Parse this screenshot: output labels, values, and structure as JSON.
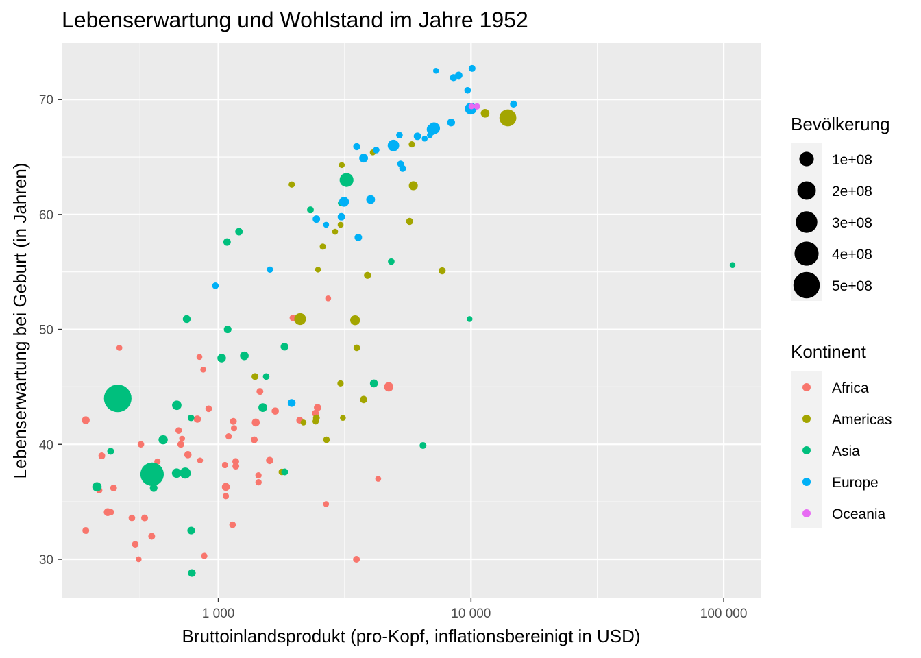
{
  "chart_data": {
    "type": "scatter",
    "title": "Lebenserwartung und Wohlstand im Jahre 1952",
    "xlabel": "Bruttoinlandsprodukt (pro-Kopf, inflationsbereinigt in USD)",
    "ylabel": "Lebenserwartung bei Geburt (in Jahren)",
    "x_scale": "log10",
    "x_ticks": [
      1000,
      10000,
      100000
    ],
    "x_tick_labels": [
      "1 000",
      "10 000",
      "100 000"
    ],
    "y_ticks": [
      30,
      40,
      50,
      60,
      70
    ],
    "y_tick_labels": [
      "30",
      "40",
      "50",
      "60",
      "70"
    ],
    "xlim": [
      240,
      140000
    ],
    "ylim": [
      26.6,
      74.9
    ],
    "panel_background": "#ebebeb",
    "grid": true,
    "size_legend": {
      "title": "Bevölkerung",
      "entries": [
        {
          "label": "1e+08",
          "value": 100000000
        },
        {
          "label": "2e+08",
          "value": 200000000
        },
        {
          "label": "3e+08",
          "value": 300000000
        },
        {
          "label": "4e+08",
          "value": 400000000
        },
        {
          "label": "5e+08",
          "value": 500000000
        }
      ]
    },
    "color_legend": {
      "title": "Kontinent",
      "entries": [
        {
          "label": "Africa",
          "color": "#F8766D"
        },
        {
          "label": "Americas",
          "color": "#A3A500"
        },
        {
          "label": "Asia",
          "color": "#00BF7D"
        },
        {
          "label": "Europe",
          "color": "#00B0F6"
        },
        {
          "label": "Oceania",
          "color": "#E76BF3"
        }
      ]
    },
    "series": [
      {
        "name": "Africa",
        "color": "#F8766D",
        "points": [
          [
            299,
            42.1,
            9
          ],
          [
            299,
            32.5,
            4
          ],
          [
            338,
            36.0,
            2
          ],
          [
            346,
            39.0,
            4
          ],
          [
            385,
            36.2,
            4
          ],
          [
            376,
            34.1,
            2
          ],
          [
            365,
            34.1,
            9
          ],
          [
            406,
            48.4,
            1
          ],
          [
            455,
            33.6,
            3
          ],
          [
            469,
            31.3,
            3
          ],
          [
            484,
            30.0,
            1
          ],
          [
            494,
            40.0,
            3
          ],
          [
            511,
            33.6,
            4
          ],
          [
            545,
            32.0,
            4
          ],
          [
            574,
            38.5,
            2
          ],
          [
            697,
            41.2,
            3
          ],
          [
            711,
            40.0,
            4
          ],
          [
            719,
            40.5,
            1
          ],
          [
            741,
            37.4,
            4
          ],
          [
            758,
            39.1,
            6
          ],
          [
            826,
            42.2,
            6
          ],
          [
            842,
            47.6,
            1
          ],
          [
            847,
            38.6,
            1
          ],
          [
            872,
            46.5,
            1
          ],
          [
            880,
            30.3,
            2
          ],
          [
            916,
            43.1,
            3
          ],
          [
            1063,
            38.2,
            2
          ],
          [
            1071,
            36.3,
            10
          ],
          [
            1071,
            35.5,
            2
          ],
          [
            1099,
            40.7,
            2
          ],
          [
            1139,
            33.0,
            3
          ],
          [
            1147,
            42.0,
            4
          ],
          [
            1154,
            41.4,
            2
          ],
          [
            1172,
            38.5,
            4
          ],
          [
            1173,
            38.1,
            4
          ],
          [
            1388,
            40.4,
            4
          ],
          [
            1407,
            41.9,
            10
          ],
          [
            1442,
            37.3,
            2
          ],
          [
            1443,
            36.7,
            2
          ],
          [
            1461,
            44.6,
            4
          ],
          [
            1597,
            38.6,
            6
          ],
          [
            1680,
            42.9,
            6
          ],
          [
            1970,
            51.0,
            2
          ],
          [
            2032,
            50.9,
            2
          ],
          [
            2100,
            42.1,
            4
          ],
          [
            2424,
            42.7,
            5
          ],
          [
            2470,
            43.2,
            6
          ],
          [
            2670,
            34.8,
            1
          ],
          [
            2721,
            52.7,
            1
          ],
          [
            3521,
            30.0,
            4
          ],
          [
            4293,
            37.0,
            1
          ],
          [
            4725,
            45.0,
            21
          ]
        ]
      },
      {
        "name": "Americas",
        "color": "#A3A500",
        "points": [
          [
            1397,
            45.9,
            4
          ],
          [
            1784,
            37.6,
            3
          ],
          [
            1953,
            62.6,
            2
          ],
          [
            2108,
            50.9,
            52
          ],
          [
            2144,
            50.8,
            4
          ],
          [
            2173,
            41.9,
            1
          ],
          [
            2428,
            42.0,
            2
          ],
          [
            2444,
            42.3,
            4
          ],
          [
            2480,
            55.2,
            1
          ],
          [
            2591,
            57.2,
            2
          ],
          [
            2680,
            40.4,
            3
          ],
          [
            2899,
            58.5,
            1
          ],
          [
            3048,
            59.1,
            1
          ],
          [
            3081,
            64.3,
            1
          ],
          [
            3112,
            42.3,
            1
          ],
          [
            3045,
            45.3,
            2
          ],
          [
            3478,
            50.8,
            26
          ],
          [
            3531,
            48.4,
            3
          ],
          [
            3759,
            43.9,
            6
          ],
          [
            3895,
            54.7,
            5
          ],
          [
            4086,
            65.4,
            1
          ],
          [
            5716,
            59.4,
            5
          ],
          [
            5912,
            62.5,
            18
          ],
          [
            5833,
            66.1,
            2
          ],
          [
            7690,
            55.1,
            5
          ],
          [
            11367,
            68.8,
            15
          ],
          [
            13990,
            68.4,
            157
          ]
        ]
      },
      {
        "name": "Asia",
        "color": "#00BF7D",
        "points": [
          [
            331,
            36.3,
            21
          ],
          [
            331,
            36.3,
            10
          ],
          [
            375,
            39.4,
            4
          ],
          [
            400,
            44.0,
            556
          ],
          [
            547,
            37.4,
            372
          ],
          [
            555,
            36.2,
            8
          ],
          [
            605,
            40.4,
            20
          ],
          [
            685,
            43.4,
            22
          ],
          [
            684,
            37.5,
            22
          ],
          [
            740,
            37.5,
            40
          ],
          [
            750,
            50.9,
            9
          ],
          [
            780,
            42.3,
            3
          ],
          [
            781,
            32.5,
            8
          ],
          [
            786,
            28.8,
            8
          ],
          [
            1031,
            47.5,
            14
          ],
          [
            1083,
            57.6,
            7
          ],
          [
            1089,
            50.0,
            8
          ],
          [
            1207,
            58.5,
            7
          ],
          [
            1268,
            47.7,
            15
          ],
          [
            1547,
            45.9,
            3
          ],
          [
            1500,
            43.2,
            16
          ],
          [
            1828,
            48.5,
            9
          ],
          [
            1831,
            37.6,
            4
          ],
          [
            2315,
            60.4,
            4
          ],
          [
            3054,
            61.0,
            1
          ],
          [
            3217,
            63.0,
            87
          ],
          [
            4129,
            45.3,
            10
          ],
          [
            4835,
            55.9,
            3
          ],
          [
            6459,
            39.9,
            4
          ],
          [
            9867,
            50.9,
            1
          ],
          [
            108382,
            55.6,
            1
          ]
        ]
      },
      {
        "name": "Europe",
        "color": "#00B0F6",
        "points": [
          [
            974,
            53.8,
            3
          ],
          [
            1601,
            55.2,
            2
          ],
          [
            1951,
            43.6,
            9
          ],
          [
            2444,
            59.6,
            7
          ],
          [
            2670,
            59.1,
            1
          ],
          [
            3069,
            59.8,
            7
          ],
          [
            3145,
            61.1,
            26
          ],
          [
            3530,
            65.9,
            5
          ],
          [
            3581,
            58.0,
            7
          ],
          [
            3758,
            64.9,
            16
          ],
          [
            4007,
            61.3,
            16
          ],
          [
            4215,
            65.6,
            3
          ],
          [
            4932,
            66.0,
            47
          ],
          [
            5263,
            64.4,
            3
          ],
          [
            5210,
            66.9,
            3
          ],
          [
            5364,
            64.0,
            4
          ],
          [
            6138,
            66.8,
            7
          ],
          [
            6557,
            66.6,
            1
          ],
          [
            6876,
            66.9,
            1
          ],
          [
            7029,
            67.4,
            42
          ],
          [
            7144,
            67.5,
            50
          ],
          [
            7269,
            72.5,
            1
          ],
          [
            8343,
            68.0,
            9
          ],
          [
            8527,
            71.9,
            5
          ],
          [
            8942,
            72.1,
            7
          ],
          [
            9980,
            69.2,
            51
          ],
          [
            9979,
            69.2,
            1
          ],
          [
            9693,
            70.8,
            3
          ],
          [
            10095,
            72.7,
            4
          ],
          [
            14734,
            69.6,
            5
          ]
        ]
      },
      {
        "name": "Oceania",
        "color": "#E76BF3",
        "points": [
          [
            10040,
            69.4,
            1
          ],
          [
            10557,
            69.4,
            2
          ]
        ]
      }
    ]
  }
}
